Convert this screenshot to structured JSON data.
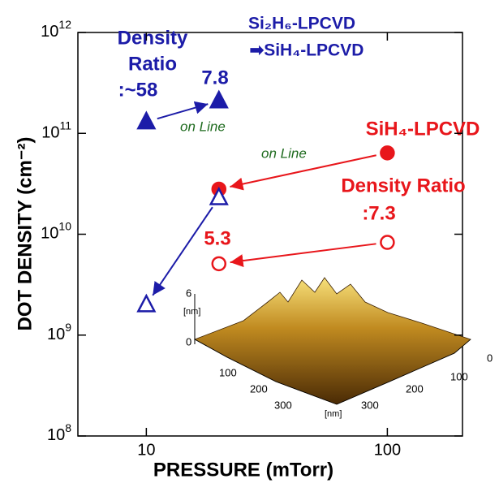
{
  "chart_data": {
    "type": "scatter",
    "xlabel": "PRESSURE (mTorr)",
    "ylabel": "DOT DENSITY (cm⁻²)",
    "log_x": true,
    "log_y": true,
    "xlim": [
      5.2,
      205
    ],
    "ylim": [
      100000000.0,
      1000000000000.0
    ],
    "xticks": [
      10,
      100
    ],
    "yticks": [
      {
        "value": 100000000.0,
        "label": "10",
        "exponent": "8"
      },
      {
        "value": 1000000000.0,
        "label": "10",
        "exponent": "9"
      },
      {
        "value": 10000000000.0,
        "label": "10",
        "exponent": "10"
      },
      {
        "value": 100000000000.0,
        "label": "10",
        "exponent": "11"
      },
      {
        "value": 1000000000000.0,
        "label": "10",
        "exponent": "12"
      }
    ],
    "series": [
      {
        "color": "#1c1ca8",
        "marker": "triangle",
        "filled": true,
        "x": [
          10,
          20
        ],
        "values": [
          130000000000.0,
          210000000000.0
        ]
      },
      {
        "color": "#e8161b",
        "marker": "circle",
        "filled": true,
        "x": [
          100,
          20
        ],
        "values": [
          64000000000.0,
          28000000000.0
        ]
      },
      {
        "color": "#1c1ca8",
        "marker": "triangle",
        "filled": false,
        "x": [
          20,
          10
        ],
        "values": [
          23000000000.0,
          2000000000.0
        ]
      },
      {
        "color": "#e8161b",
        "marker": "circle",
        "filled": false,
        "x": [
          100,
          20
        ],
        "values": [
          8300000000.0,
          5100000000.0
        ]
      }
    ],
    "annotations": {
      "si2h6_line1": "Si₂H₆-LPCVD",
      "si2h6_line2": "➡SiH₄-LPCVD",
      "ratio1_line1": "Density",
      "ratio1_line2": "Ratio",
      "ratio1_line3": ":~58",
      "value1": "7.8",
      "online1": "on Line",
      "sih4": "SiH₄-LPCVD",
      "online2": "on Line",
      "ratio2_line1": "Density Ratio",
      "ratio2_line2": ":7.3",
      "value2": "5.3"
    },
    "inset": {
      "z_labels": [
        "6",
        "0"
      ],
      "z_unit": "[nm]",
      "x_labels": [
        "100",
        "200",
        "300"
      ],
      "x_unit": "[nm]",
      "y_labels": [
        "300",
        "200",
        "100",
        "0"
      ]
    }
  }
}
